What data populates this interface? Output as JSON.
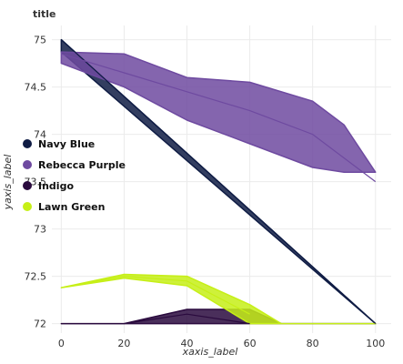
{
  "chart_data": {
    "type": "line",
    "title": "title",
    "xlabel": "xaxis_label",
    "ylabel": "yaxis_label",
    "xlim": [
      -3,
      105
    ],
    "ylim": [
      71.9,
      75.15
    ],
    "x_ticks": [
      0,
      20,
      40,
      60,
      80,
      100
    ],
    "x_tick_labels": [
      "0",
      "20",
      "40",
      "60",
      "80",
      "100"
    ],
    "y_ticks": [
      72,
      72.5,
      73,
      73.5,
      74,
      74.5,
      75
    ],
    "y_tick_labels": [
      "72",
      "72.5",
      "73",
      "73.5",
      "74",
      "74.5",
      "75"
    ],
    "grid": true,
    "legend_position": "left",
    "series": [
      {
        "name": "Navy Blue",
        "color": "#0f1c44",
        "x": [
          0,
          100
        ],
        "y": [
          75,
          72
        ],
        "x_shading": [
          0,
          100
        ],
        "lower": [
          74.87,
          72
        ],
        "upper": [
          75,
          72
        ]
      },
      {
        "name": "Rebecca Purple",
        "color": "#6e4aa0",
        "x": [
          0,
          20,
          40,
          60,
          80,
          100
        ],
        "y": [
          74.85,
          74.65,
          74.45,
          74.25,
          74.0,
          73.5
        ],
        "x_shading": [
          0,
          20,
          40,
          60,
          80,
          90,
          100
        ],
        "lower": [
          74.75,
          74.5,
          74.15,
          73.9,
          73.65,
          73.6,
          73.6
        ],
        "upper": [
          74.87,
          74.85,
          74.6,
          74.55,
          74.35,
          74.1,
          73.6
        ]
      },
      {
        "name": "Indigo",
        "color": "#2a0a3e",
        "x": [
          0,
          20,
          40,
          60
        ],
        "y": [
          72,
          72,
          72.1,
          72.0
        ],
        "x_shading": [
          0,
          20,
          40,
          60,
          70,
          100
        ],
        "lower": [
          72,
          72,
          72,
          72,
          72,
          72
        ],
        "upper": [
          72,
          72,
          72.15,
          72.15,
          72,
          72
        ]
      },
      {
        "name": "Lawn Green",
        "color": "#c6ef17",
        "x": [
          0,
          20,
          40,
          60
        ],
        "y": [
          72.38,
          72.5,
          72.45,
          72.1
        ],
        "x_shading": [
          0,
          20,
          40,
          60,
          70,
          100
        ],
        "lower": [
          72.38,
          72.48,
          72.4,
          72.0,
          72,
          72
        ],
        "upper": [
          72.38,
          72.52,
          72.5,
          72.2,
          72,
          72
        ]
      }
    ]
  }
}
